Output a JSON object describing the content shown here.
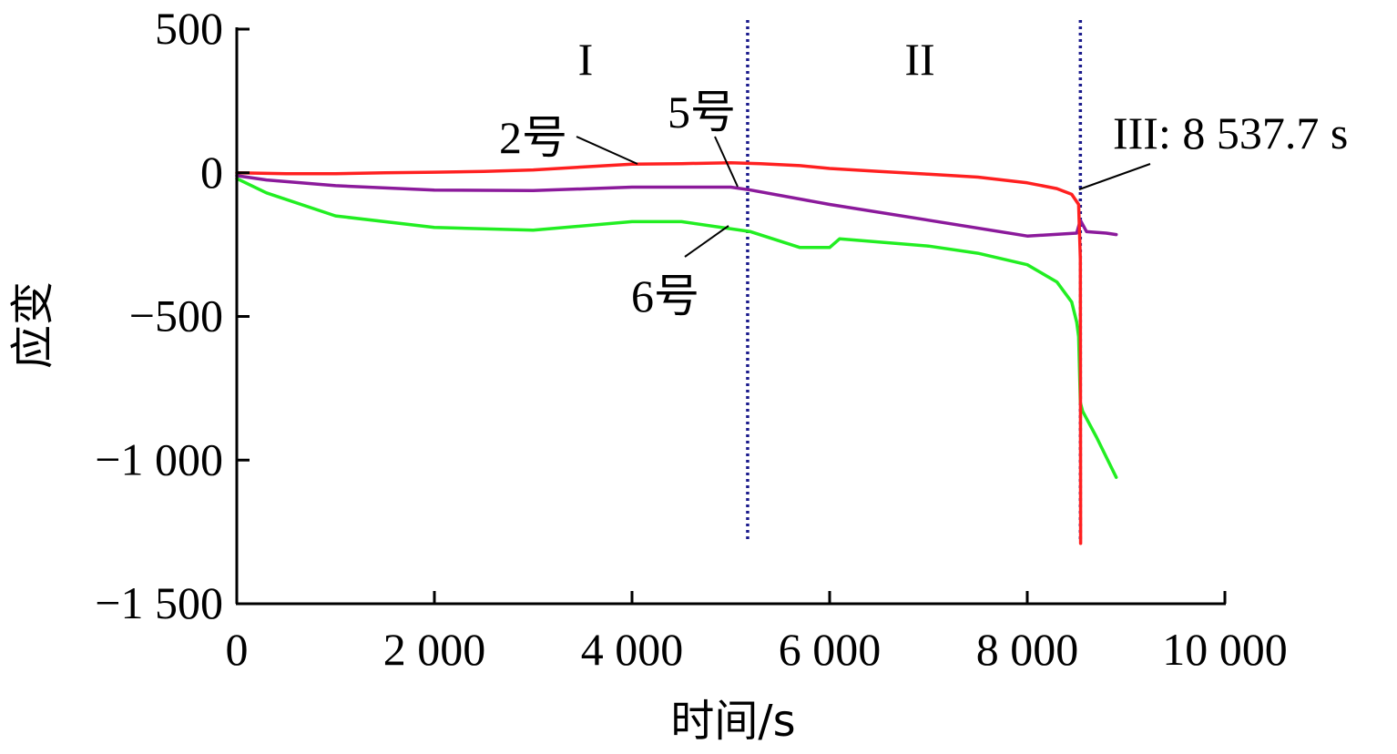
{
  "chart_data": {
    "type": "line",
    "xlabel": "时间/s",
    "ylabel": "应变",
    "xlim": [
      0,
      10000
    ],
    "ylim": [
      -1500,
      500
    ],
    "grid": false,
    "x_ticks": [
      {
        "value": 0,
        "label": "0"
      },
      {
        "value": 2000,
        "label": "2 000"
      },
      {
        "value": 4000,
        "label": "4 000"
      },
      {
        "value": 6000,
        "label": "6 000"
      },
      {
        "value": 8000,
        "label": "8 000"
      },
      {
        "value": 10000,
        "label": "10 000"
      }
    ],
    "y_ticks": [
      {
        "value": 500,
        "label": "500"
      },
      {
        "value": 0,
        "label": "0"
      },
      {
        "value": -500,
        "label": "−500"
      },
      {
        "value": -1000,
        "label": "−1 000"
      },
      {
        "value": -1500,
        "label": "−1 500"
      }
    ],
    "series": [
      {
        "name": "2号",
        "color": "#ff2020",
        "x": [
          0,
          500,
          1000,
          1500,
          2000,
          2500,
          3000,
          3500,
          4000,
          4500,
          5000,
          5300,
          5700,
          6000,
          6500,
          7000,
          7500,
          8000,
          8300,
          8450,
          8520,
          8537.7,
          8540
        ],
        "y": [
          0,
          -3,
          -3,
          0,
          2,
          5,
          10,
          20,
          30,
          32,
          35,
          32,
          25,
          15,
          5,
          -5,
          -15,
          -35,
          -55,
          -75,
          -110,
          -300,
          -1290
        ]
      },
      {
        "name": "5号",
        "color": "#8b1a9b",
        "x": [
          0,
          300,
          1000,
          2000,
          3000,
          4000,
          5000,
          5200,
          6000,
          7000,
          8000,
          8500,
          8537.7,
          8600,
          8800,
          8900
        ],
        "y": [
          -10,
          -25,
          -45,
          -60,
          -62,
          -50,
          -50,
          -60,
          -110,
          -165,
          -220,
          -210,
          -165,
          -205,
          -210,
          -215
        ]
      },
      {
        "name": "6号",
        "color": "#22ee22",
        "x": [
          0,
          300,
          1000,
          2000,
          3000,
          4000,
          4500,
          5200,
          5700,
          6000,
          6100,
          7000,
          7500,
          8000,
          8300,
          8450,
          8500,
          8520,
          8537.7,
          8560,
          8700,
          8900
        ],
        "y": [
          -20,
          -70,
          -150,
          -190,
          -200,
          -170,
          -170,
          -205,
          -260,
          -260,
          -230,
          -255,
          -280,
          -320,
          -380,
          -450,
          -520,
          -570,
          -800,
          -830,
          -920,
          -1060
        ]
      }
    ],
    "vlines": [
      {
        "x": 5170,
        "color": "#1a1a8c",
        "style": "dotted"
      },
      {
        "x": 8537.7,
        "color": "#1a1a8c",
        "style": "dotted"
      }
    ],
    "annotations": {
      "region_1": "I",
      "region_2": "II",
      "region_3": "III: 8 537.7 s"
    }
  }
}
